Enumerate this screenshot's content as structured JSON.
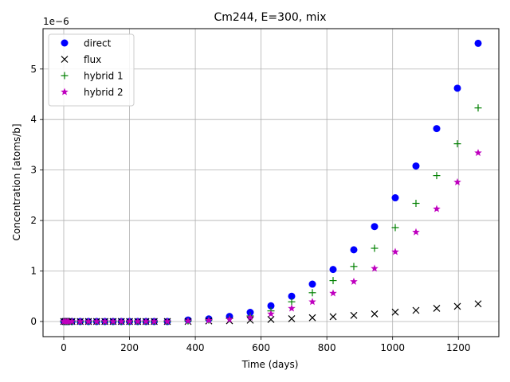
{
  "chart_data": {
    "type": "scatter",
    "title": "Cm244, E=300, mix",
    "xlabel": "Time (days)",
    "ylabel": "Concentration [atoms/b]",
    "y_offset_label": "1e−6",
    "y_scale": 1e-06,
    "xlim": [
      -63,
      1323
    ],
    "ylim": [
      -3e-07,
      5.8e-06
    ],
    "xticks": [
      0,
      200,
      400,
      600,
      800,
      1000,
      1200
    ],
    "yticks": [
      0,
      1,
      2,
      3,
      4,
      5
    ],
    "grid": true,
    "legend_position": "top-left",
    "x": [
      0,
      5,
      10,
      15,
      25,
      50,
      75,
      100,
      125,
      150,
      175,
      200,
      225,
      250,
      275,
      315,
      378,
      441,
      504,
      567,
      630,
      693,
      756,
      819,
      882,
      945,
      1008,
      1071,
      1134,
      1197,
      1260
    ],
    "series": [
      {
        "name": "direct",
        "marker": "circle",
        "color": "#0000ff",
        "values": [
          0,
          0,
          0,
          0,
          0,
          0,
          0,
          0,
          0,
          0,
          0,
          0,
          0,
          0,
          0,
          0,
          3e-08,
          5e-08,
          1e-07,
          1.8e-07,
          3.1e-07,
          5e-07,
          7.4e-07,
          1.03e-06,
          1.42e-06,
          1.88e-06,
          2.45e-06,
          3.08e-06,
          3.82e-06,
          4.62e-06,
          5.51e-06
        ]
      },
      {
        "name": "flux",
        "marker": "x",
        "color": "#000000",
        "values": [
          0,
          0,
          0,
          0,
          0,
          0,
          0,
          0,
          0,
          0,
          0,
          0,
          0,
          0,
          0,
          0,
          0,
          1e-08,
          1.5e-08,
          2.5e-08,
          4e-08,
          5.5e-08,
          7.5e-08,
          9.5e-08,
          1.2e-07,
          1.5e-07,
          1.85e-07,
          2.2e-07,
          2.6e-07,
          3e-07,
          3.5e-07
        ]
      },
      {
        "name": "hybrid 1",
        "marker": "plus",
        "color": "#008000",
        "values": [
          0,
          0,
          0,
          0,
          0,
          0,
          0,
          0,
          0,
          0,
          0,
          0,
          0,
          0,
          0,
          0,
          1e-08,
          3e-08,
          6e-08,
          1.1e-07,
          2.1e-07,
          3.9e-07,
          5.7e-07,
          8.1e-07,
          1.09e-06,
          1.45e-06,
          1.86e-06,
          2.34e-06,
          2.89e-06,
          3.52e-06,
          4.23e-06
        ]
      },
      {
        "name": "hybrid 2",
        "marker": "star",
        "color": "#bf00bf",
        "values": [
          0,
          0,
          0,
          0,
          0,
          0,
          0,
          0,
          0,
          0,
          0,
          0,
          0,
          0,
          0,
          0,
          1e-08,
          2e-08,
          4e-08,
          8e-08,
          1.5e-07,
          2.6e-07,
          3.9e-07,
          5.6e-07,
          7.9e-07,
          1.05e-06,
          1.38e-06,
          1.77e-06,
          2.23e-06,
          2.76e-06,
          3.34e-06
        ]
      }
    ]
  }
}
